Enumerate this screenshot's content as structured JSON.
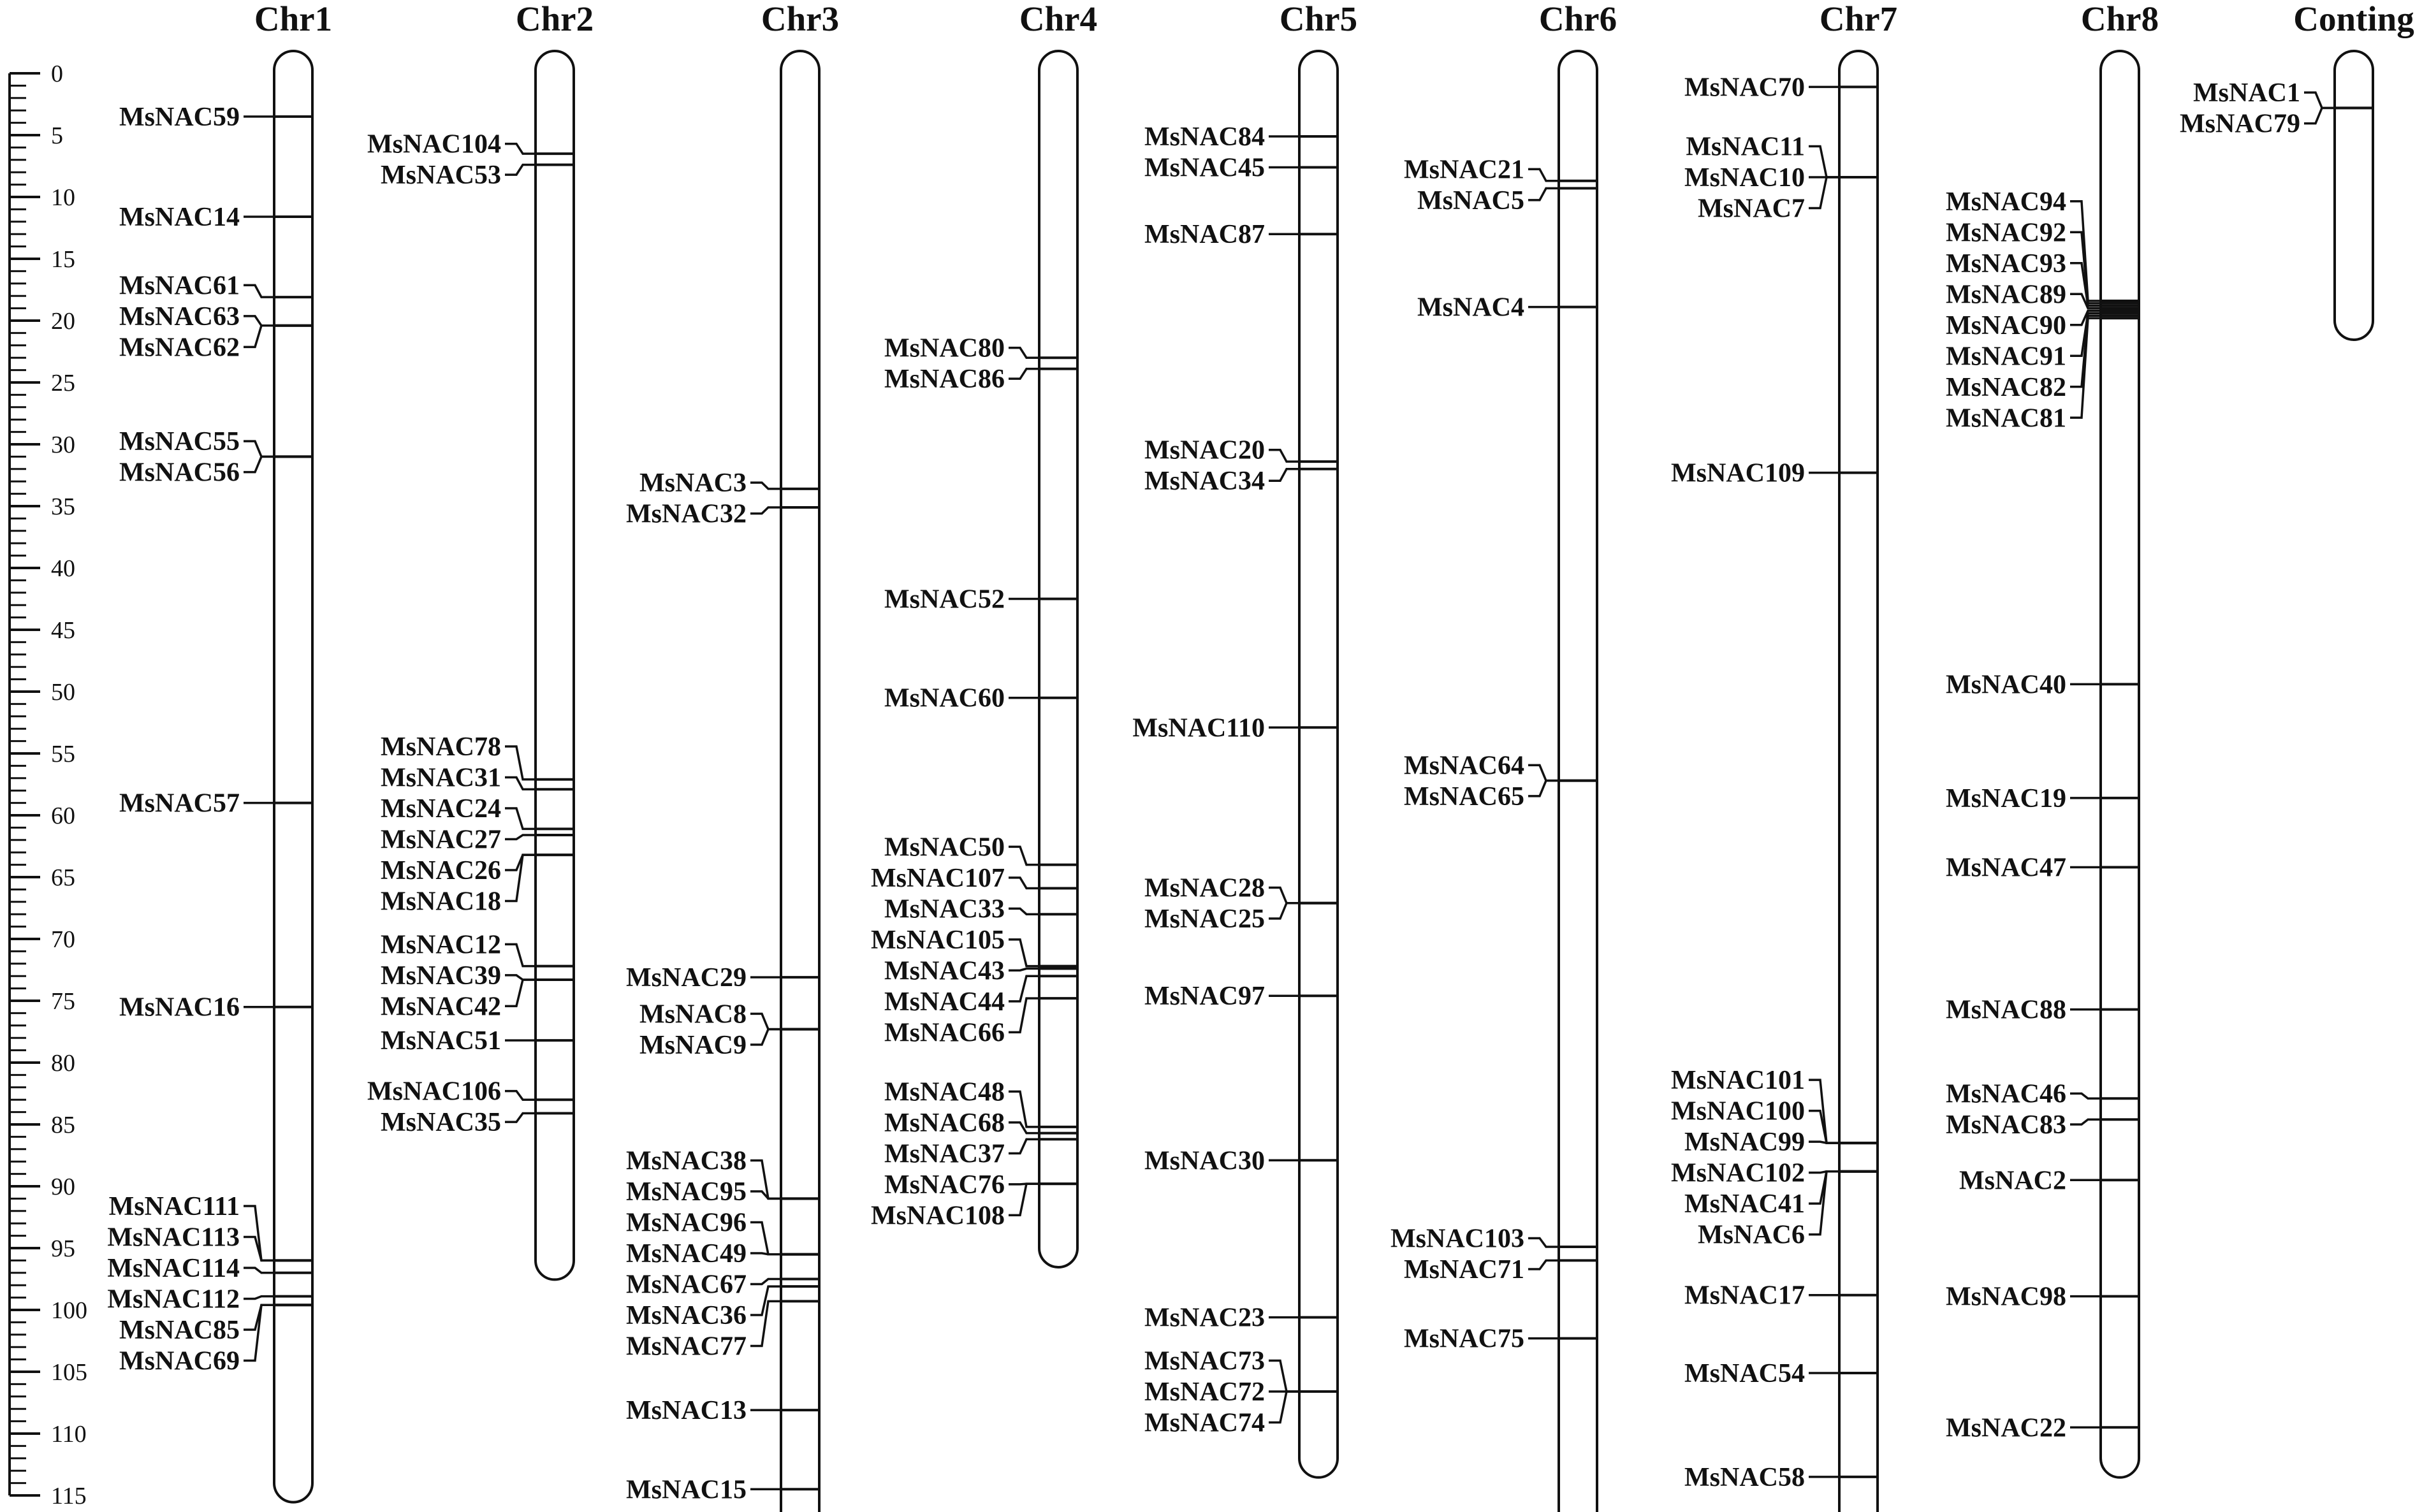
{
  "scale": {
    "min": 0,
    "max": 115,
    "labels": [
      "0",
      "5",
      "10",
      "15",
      "20",
      "25",
      "30",
      "35",
      "40",
      "45",
      "50",
      "55",
      "60",
      "65",
      "70",
      "75",
      "80",
      "85",
      "90",
      "95",
      "100",
      "105",
      "110",
      "115"
    ]
  },
  "chromosomes": [
    {
      "name": "Chr1",
      "start": 0,
      "end": 114,
      "genes": [
        {
          "label": "MsNAC59",
          "pos": 3.5
        },
        {
          "label": "MsNAC14",
          "pos": 11.6
        },
        {
          "label": "MsNAC61",
          "pos": 18.1
        },
        {
          "label": "MsNAC63",
          "pos": 20.4
        },
        {
          "label": "MsNAC62",
          "pos": 20.4
        },
        {
          "label": "MsNAC55",
          "pos": 31.0
        },
        {
          "label": "MsNAC56",
          "pos": 31.0
        },
        {
          "label": "MsNAC57",
          "pos": 59.0
        },
        {
          "label": "MsNAC16",
          "pos": 75.5
        },
        {
          "label": "MsNAC111",
          "pos": 96.0
        },
        {
          "label": "MsNAC113",
          "pos": 96.0
        },
        {
          "label": "MsNAC114",
          "pos": 97.0
        },
        {
          "label": "MsNAC112",
          "pos": 98.9
        },
        {
          "label": "MsNAC85",
          "pos": 99.6
        },
        {
          "label": "MsNAC69",
          "pos": 99.6
        }
      ]
    },
    {
      "name": "Chr2",
      "start": 0,
      "end": 96,
      "genes": [
        {
          "label": "MsNAC104",
          "pos": 6.5
        },
        {
          "label": "MsNAC53",
          "pos": 7.4
        },
        {
          "label": "MsNAC78",
          "pos": 57.1
        },
        {
          "label": "MsNAC31",
          "pos": 57.9
        },
        {
          "label": "MsNAC24",
          "pos": 61.1
        },
        {
          "label": "MsNAC27",
          "pos": 61.6
        },
        {
          "label": "MsNAC26",
          "pos": 63.2
        },
        {
          "label": "MsNAC18",
          "pos": 63.2
        },
        {
          "label": "MsNAC12",
          "pos": 72.2
        },
        {
          "label": "MsNAC39",
          "pos": 73.3
        },
        {
          "label": "MsNAC42",
          "pos": 73.3
        },
        {
          "label": "MsNAC51",
          "pos": 78.2
        },
        {
          "label": "MsNAC106",
          "pos": 83.0
        },
        {
          "label": "MsNAC35",
          "pos": 84.1
        }
      ]
    },
    {
      "name": "Chr3",
      "start": 0,
      "end": 117,
      "genes": [
        {
          "label": "MsNAC3",
          "pos": 33.6
        },
        {
          "label": "MsNAC32",
          "pos": 35.1
        },
        {
          "label": "MsNAC29",
          "pos": 73.1
        },
        {
          "label": "MsNAC8",
          "pos": 77.3
        },
        {
          "label": "MsNAC9",
          "pos": 77.3
        },
        {
          "label": "MsNAC38",
          "pos": 91.0
        },
        {
          "label": "MsNAC95",
          "pos": 91.0
        },
        {
          "label": "MsNAC96",
          "pos": 95.5
        },
        {
          "label": "MsNAC49",
          "pos": 95.5
        },
        {
          "label": "MsNAC67",
          "pos": 97.5
        },
        {
          "label": "MsNAC36",
          "pos": 98.1
        },
        {
          "label": "MsNAC77",
          "pos": 99.3
        },
        {
          "label": "MsNAC13",
          "pos": 108.1
        },
        {
          "label": "MsNAC15",
          "pos": 114.5
        }
      ]
    },
    {
      "name": "Chr4",
      "start": 0,
      "end": 95,
      "genes": [
        {
          "label": "MsNAC80",
          "pos": 23.0
        },
        {
          "label": "MsNAC86",
          "pos": 23.9
        },
        {
          "label": "MsNAC52",
          "pos": 42.5
        },
        {
          "label": "MsNAC60",
          "pos": 50.5
        },
        {
          "label": "MsNAC50",
          "pos": 64.0
        },
        {
          "label": "MsNAC107",
          "pos": 65.9
        },
        {
          "label": "MsNAC33",
          "pos": 68.0
        },
        {
          "label": "MsNAC105",
          "pos": 72.2
        },
        {
          "label": "MsNAC43",
          "pos": 72.4
        },
        {
          "label": "MsNAC44",
          "pos": 73.0
        },
        {
          "label": "MsNAC66",
          "pos": 74.8
        },
        {
          "label": "MsNAC48",
          "pos": 85.2
        },
        {
          "label": "MsNAC68",
          "pos": 85.7
        },
        {
          "label": "MsNAC37",
          "pos": 86.2
        },
        {
          "label": "MsNAC76",
          "pos": 89.8
        },
        {
          "label": "MsNAC108",
          "pos": 89.8
        }
      ]
    },
    {
      "name": "Chr5",
      "start": 0,
      "end": 112,
      "genes": [
        {
          "label": "MsNAC84",
          "pos": 5.1
        },
        {
          "label": "MsNAC45",
          "pos": 7.6
        },
        {
          "label": "MsNAC87",
          "pos": 13.0
        },
        {
          "label": "MsNAC20",
          "pos": 31.4
        },
        {
          "label": "MsNAC34",
          "pos": 32.0
        },
        {
          "label": "MsNAC110",
          "pos": 52.9
        },
        {
          "label": "MsNAC28",
          "pos": 67.1
        },
        {
          "label": "MsNAC25",
          "pos": 67.1
        },
        {
          "label": "MsNAC97",
          "pos": 74.6
        },
        {
          "label": "MsNAC30",
          "pos": 87.9
        },
        {
          "label": "MsNAC23",
          "pos": 100.6
        },
        {
          "label": "MsNAC73",
          "pos": 106.6
        },
        {
          "label": "MsNAC72",
          "pos": 106.6
        },
        {
          "label": "MsNAC74",
          "pos": 106.6
        }
      ]
    },
    {
      "name": "Chr6",
      "start": 0,
      "end": 117,
      "genes": [
        {
          "label": "MsNAC21",
          "pos": 8.7
        },
        {
          "label": "MsNAC5",
          "pos": 9.3
        },
        {
          "label": "MsNAC4",
          "pos": 18.9
        },
        {
          "label": "MsNAC64",
          "pos": 57.2
        },
        {
          "label": "MsNAC65",
          "pos": 57.2
        },
        {
          "label": "MsNAC103",
          "pos": 94.9
        },
        {
          "label": "MsNAC71",
          "pos": 96.0
        },
        {
          "label": "MsNAC75",
          "pos": 102.3
        }
      ]
    },
    {
      "name": "Chr7",
      "start": 0,
      "end": 117,
      "genes": [
        {
          "label": "MsNAC70",
          "pos": 1.1
        },
        {
          "label": "MsNAC11",
          "pos": 8.4
        },
        {
          "label": "MsNAC10",
          "pos": 8.4
        },
        {
          "label": "MsNAC7",
          "pos": 8.4
        },
        {
          "label": "MsNAC109",
          "pos": 32.3
        },
        {
          "label": "MsNAC101",
          "pos": 86.5
        },
        {
          "label": "MsNAC100",
          "pos": 86.5
        },
        {
          "label": "MsNAC99",
          "pos": 86.5
        },
        {
          "label": "MsNAC102",
          "pos": 88.8
        },
        {
          "label": "MsNAC41",
          "pos": 88.8
        },
        {
          "label": "MsNAC6",
          "pos": 88.8
        },
        {
          "label": "MsNAC17",
          "pos": 98.8
        },
        {
          "label": "MsNAC54",
          "pos": 105.1
        },
        {
          "label": "MsNAC58",
          "pos": 113.5
        }
      ]
    },
    {
      "name": "Chr8",
      "start": 0,
      "end": 112,
      "genes": [
        {
          "label": "MsNAC94",
          "pos": 18.4
        },
        {
          "label": "MsNAC92",
          "pos": 18.6
        },
        {
          "label": "MsNAC93",
          "pos": 18.8
        },
        {
          "label": "MsNAC89",
          "pos": 19.0
        },
        {
          "label": "MsNAC90",
          "pos": 19.2
        },
        {
          "label": "MsNAC91",
          "pos": 19.4
        },
        {
          "label": "MsNAC82",
          "pos": 19.6
        },
        {
          "label": "MsNAC81",
          "pos": 19.8
        },
        {
          "label": "MsNAC40",
          "pos": 49.4
        },
        {
          "label": "MsNAC19",
          "pos": 58.6
        },
        {
          "label": "MsNAC47",
          "pos": 64.2
        },
        {
          "label": "MsNAC88",
          "pos": 75.7
        },
        {
          "label": "MsNAC46",
          "pos": 82.9
        },
        {
          "label": "MsNAC83",
          "pos": 84.6
        },
        {
          "label": "MsNAC2",
          "pos": 89.5
        },
        {
          "label": "MsNAC98",
          "pos": 98.9
        },
        {
          "label": "MsNAC22",
          "pos": 109.5
        }
      ]
    },
    {
      "name": "Conting",
      "start": 0,
      "end": 20,
      "genes": [
        {
          "label": "MsNAC1",
          "pos": 2.8
        },
        {
          "label": "MsNAC79",
          "pos": 2.8
        }
      ]
    }
  ]
}
